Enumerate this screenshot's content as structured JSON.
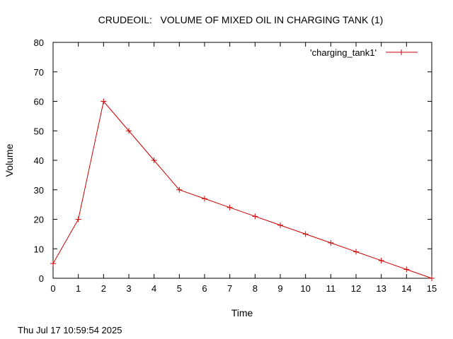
{
  "chart_data": {
    "type": "line",
    "title": "CRUDEOIL:   VOLUME OF MIXED OIL IN CHARGING TANK (1)",
    "xlabel": "Time",
    "ylabel": "Volume",
    "xlim": [
      0,
      15
    ],
    "ylim": [
      0,
      80
    ],
    "x_ticks": [
      0,
      1,
      2,
      3,
      4,
      5,
      6,
      7,
      8,
      9,
      10,
      11,
      12,
      13,
      14,
      15
    ],
    "y_ticks": [
      0,
      10,
      20,
      30,
      40,
      50,
      60,
      70,
      80
    ],
    "grid": false,
    "legend_position": "top-right",
    "series": [
      {
        "name": "'charging_tank1'",
        "color": "#cc0000",
        "marker": "plus",
        "x": [
          0,
          1,
          2,
          3,
          4,
          5,
          6,
          7,
          8,
          9,
          10,
          11,
          12,
          13,
          14,
          15
        ],
        "y": [
          5,
          20,
          60,
          50,
          40,
          30,
          27,
          24,
          21,
          18,
          15,
          12,
          9,
          6,
          3,
          0
        ]
      }
    ]
  },
  "footer": {
    "timestamp": "Thu Jul 17 10:59:54 2025"
  }
}
